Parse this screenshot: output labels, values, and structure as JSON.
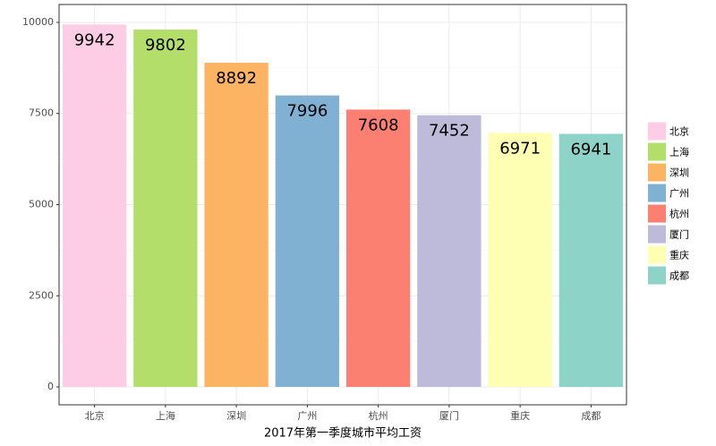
{
  "chart_data": {
    "type": "bar",
    "x_label": "2017年第一季度城市平均工资",
    "categories": [
      "北京",
      "上海",
      "深圳",
      "广州",
      "杭州",
      "厦门",
      "重庆",
      "成都"
    ],
    "values": [
      9942,
      9802,
      8892,
      7996,
      7608,
      7452,
      6971,
      6941
    ],
    "colors": [
      "#fccde5",
      "#b3de69",
      "#fdb462",
      "#80b1d3",
      "#fb8072",
      "#bebada",
      "#ffffb3",
      "#8dd3c7"
    ],
    "ylim": [
      -491,
      10491
    ],
    "yticks": [
      0,
      2500,
      5000,
      7500,
      10000
    ],
    "grid": true,
    "legend": "right"
  }
}
